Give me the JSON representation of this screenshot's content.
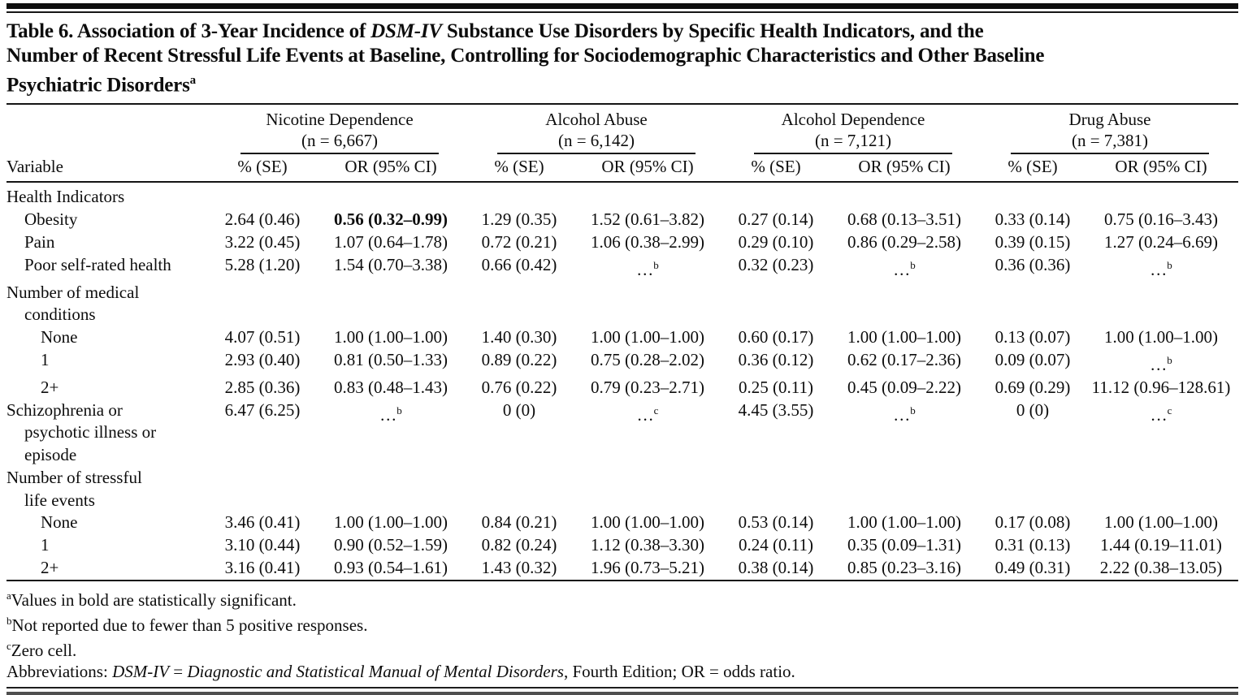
{
  "title": {
    "part1": "Table 6. Association of 3-Year Incidence of ",
    "italic": "DSM-IV",
    "line1_rest": " Substance Use Disorders by Specific Health Indicators, and the",
    "line2": "Number of Recent Stressful Life Events at Baseline, Controlling for Sociodemographic Characteristics and Other Baseline",
    "line3": "Psychiatric Disorders",
    "superscript": "a"
  },
  "table": {
    "variable_header": "Variable",
    "groups": [
      {
        "name": "Nicotine Dependence",
        "n": "(n = 6,667)",
        "col1": "% (SE)",
        "col2": "OR (95% CI)"
      },
      {
        "name": "Alcohol Abuse",
        "n": "(n = 6,142)",
        "col1": "% (SE)",
        "col2": "OR (95% CI)"
      },
      {
        "name": "Alcohol Dependence",
        "n": "(n = 7,121)",
        "col1": "% (SE)",
        "col2": "OR (95% CI)"
      },
      {
        "name": "Drug Abuse",
        "n": "(n = 7,381)",
        "col1": "% (SE)",
        "col2": "OR (95% CI)"
      }
    ],
    "rows": [
      {
        "label_lines": [
          "Health Indicators"
        ],
        "indent": 0,
        "cells": []
      },
      {
        "label_lines": [
          "Obesity"
        ],
        "indent": 1,
        "cells": [
          "2.64 (0.46)",
          "**0.56 (0.32–0.99)**",
          "1.29 (0.35)",
          "1.52 (0.61–3.82)",
          "0.27 (0.14)",
          "0.68 (0.13–3.51)",
          "0.33 (0.14)",
          "0.75 (0.16–3.43)"
        ]
      },
      {
        "label_lines": [
          "Pain"
        ],
        "indent": 1,
        "cells": [
          "3.22 (0.45)",
          "1.07 (0.64–1.78)",
          "0.72 (0.21)",
          "1.06 (0.38–2.99)",
          "0.29 (0.10)",
          "0.86 (0.29–2.58)",
          "0.39 (0.15)",
          "1.27 (0.24–6.69)"
        ]
      },
      {
        "label_lines": [
          "Poor self-rated health"
        ],
        "indent": 1,
        "cells": [
          "5.28 (1.20)",
          "1.54 (0.70–3.38)",
          "0.66 (0.42)",
          "…^b",
          "0.32 (0.23)",
          "…^b",
          "0.36 (0.36)",
          "…^b"
        ]
      },
      {
        "label_lines": [
          "Number of medical",
          "conditions"
        ],
        "indent": 0,
        "cells": []
      },
      {
        "label_lines": [
          "None"
        ],
        "indent": 2,
        "cells": [
          "4.07 (0.51)",
          "1.00 (1.00–1.00)",
          "1.40 (0.30)",
          "1.00 (1.00–1.00)",
          "0.60 (0.17)",
          "1.00 (1.00–1.00)",
          "0.13 (0.07)",
          "1.00 (1.00–1.00)"
        ]
      },
      {
        "label_lines": [
          "1"
        ],
        "indent": 2,
        "cells": [
          "2.93 (0.40)",
          "0.81 (0.50–1.33)",
          "0.89 (0.22)",
          "0.75 (0.28–2.02)",
          "0.36 (0.12)",
          "0.62 (0.17–2.36)",
          "0.09 (0.07)",
          "…^b"
        ]
      },
      {
        "label_lines": [
          "2+"
        ],
        "indent": 2,
        "cells": [
          "2.85 (0.36)",
          "0.83 (0.48–1.43)",
          "0.76 (0.22)",
          "0.79 (0.23–2.71)",
          "0.25 (0.11)",
          "0.45 (0.09–2.22)",
          "0.69 (0.29)",
          "11.12 (0.96–128.61)"
        ]
      },
      {
        "label_lines": [
          "Schizophrenia or",
          "psychotic illness or",
          "episode"
        ],
        "indent": 0,
        "cells": [
          "6.47 (6.25)",
          "…^b",
          "0 (0)",
          "…^c",
          "4.45 (3.55)",
          "…^b",
          "0 (0)",
          "…^c"
        ]
      },
      {
        "label_lines": [
          "Number of stressful",
          "life events"
        ],
        "indent": 0,
        "cells": []
      },
      {
        "label_lines": [
          "None"
        ],
        "indent": 2,
        "cells": [
          "3.46 (0.41)",
          "1.00 (1.00–1.00)",
          "0.84 (0.21)",
          "1.00 (1.00–1.00)",
          "0.53 (0.14)",
          "1.00 (1.00–1.00)",
          "0.17 (0.08)",
          "1.00 (1.00–1.00)"
        ]
      },
      {
        "label_lines": [
          "1"
        ],
        "indent": 2,
        "cells": [
          "3.10 (0.44)",
          "0.90 (0.52–1.59)",
          "0.82 (0.24)",
          "1.12 (0.38–3.30)",
          "0.24 (0.11)",
          "0.35 (0.09–1.31)",
          "0.31 (0.13)",
          "1.44 (0.19–11.01)"
        ]
      },
      {
        "label_lines": [
          "2+"
        ],
        "indent": 2,
        "cells": [
          "3.16 (0.41)",
          "0.93 (0.54–1.61)",
          "1.43 (0.32)",
          "1.96 (0.73–5.21)",
          "0.38 (0.14)",
          "0.85 (0.23–3.16)",
          "0.49 (0.31)",
          "2.22 (0.38–13.05)"
        ]
      }
    ]
  },
  "footnotes": {
    "a": {
      "sup": "a",
      "text": "Values in bold are statistically significant."
    },
    "b": {
      "sup": "b",
      "text": "Not reported due to fewer than 5 positive responses."
    },
    "c": {
      "sup": "c",
      "text": "Zero cell."
    },
    "abbrev": {
      "prefix": "Abbreviations: ",
      "italic1": "DSM-IV",
      "mid": " = ",
      "italic2": "Diagnostic and Statistical Manual of Mental Disorders",
      "suffix": ", Fourth Edition; OR = odds ratio."
    }
  },
  "colors": {
    "text": "#0d0d0d",
    "rule": "#141414",
    "background": "#ffffff"
  }
}
